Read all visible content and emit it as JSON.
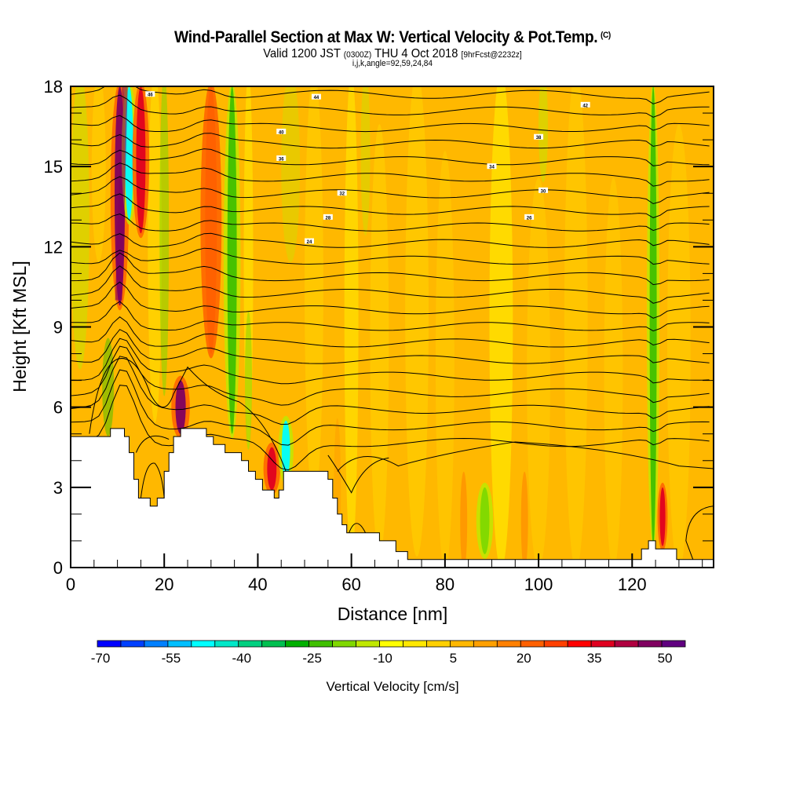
{
  "header": {
    "title": "Wind-Parallel Section at Max W: Vertical Velocity & Pot.Temp.",
    "copyright": "(C)",
    "valid_prefix": "Valid 1200 JST",
    "valid_utc": "(0300Z)",
    "valid_date": "THU 4 Oct 2018",
    "forecast": "[9hrFcst@2232z]",
    "indices": "i,j,k,angle=92,59,24,84"
  },
  "chart_data": {
    "type": "heatmap",
    "title": "Wind-Parallel Section at Max W: Vertical Velocity & Pot.Temp.",
    "xlabel": "Distance [nm]",
    "ylabel": "Height [Kft MSL]",
    "xlim": [
      0,
      137.4
    ],
    "ylim": [
      0,
      18
    ],
    "x_ticks": [
      "0",
      "20",
      "40",
      "60",
      "80",
      "100",
      "120"
    ],
    "x_tick_values": [
      0,
      20,
      40,
      60,
      80,
      100,
      120
    ],
    "x_minor_step": 5,
    "y_ticks": [
      "0",
      "3",
      "6",
      "9",
      "12",
      "15",
      "18"
    ],
    "y_tick_values": [
      0,
      3,
      6,
      9,
      12,
      15,
      18
    ],
    "y_minor_step": 1,
    "colorbar": {
      "label": "Vertical Velocity [cm/s]",
      "tick_labels": [
        "-70",
        "-55",
        "-40",
        "-25",
        "-10",
        "5",
        "20",
        "35",
        "50"
      ],
      "tick_values": [
        -70,
        -55,
        -40,
        -25,
        -10,
        5,
        20,
        35,
        50
      ],
      "min": -70,
      "step": 5,
      "colors": [
        "#0000ff",
        "#0040ff",
        "#0080ff",
        "#00bfff",
        "#00ffff",
        "#00e8c8",
        "#00d080",
        "#00c050",
        "#00b000",
        "#40c000",
        "#80d800",
        "#c0e800",
        "#ffff00",
        "#ffe800",
        "#ffd000",
        "#ffb800",
        "#ffa000",
        "#ff8000",
        "#ff6000",
        "#ff4000",
        "#ff0000",
        "#e00020",
        "#b00040",
        "#800060",
        "#600080"
      ]
    },
    "background_value_cm_s": 5,
    "streaks": [
      {
        "x": 10.5,
        "y0": 9.8,
        "y1": 18,
        "w": 2.2,
        "value": 45,
        "note": "strong updraft, upper-left"
      },
      {
        "x": 12.5,
        "y0": 13,
        "y1": 18,
        "w": 1.8,
        "value": -50,
        "note": "downdraft core"
      },
      {
        "x": 15.0,
        "y0": 12.5,
        "y1": 18,
        "w": 2.0,
        "value": 35
      },
      {
        "x": 23.5,
        "y0": 5.0,
        "y1": 7.0,
        "w": 2.2,
        "value": 45,
        "note": "lee updraft"
      },
      {
        "x": 34.5,
        "y0": 5,
        "y1": 18,
        "w": 2.0,
        "value": -25
      },
      {
        "x": 30.0,
        "y0": 8,
        "y1": 18,
        "w": 2.5,
        "value": 20
      },
      {
        "x": 43.0,
        "y0": 2.9,
        "y1": 4.5,
        "w": 2.0,
        "value": 35
      },
      {
        "x": 46.0,
        "y0": 3.3,
        "y1": 5.5,
        "w": 1.8,
        "value": -50,
        "note": "downslope jet"
      },
      {
        "x": 88.5,
        "y0": 0.5,
        "y1": 3.0,
        "w": 2.0,
        "value": -20
      },
      {
        "x": 124.5,
        "y0": 0.8,
        "y1": 18,
        "w": 1.5,
        "value": -25
      },
      {
        "x": 126.5,
        "y0": 0.8,
        "y1": 3.0,
        "w": 1.2,
        "value": 35
      }
    ],
    "contour_field": "Potential Temperature",
    "contour_labels_visible": [
      "46",
      "44",
      "42",
      "40",
      "38",
      "36",
      "34",
      "32",
      "30",
      "28",
      "26",
      "24"
    ],
    "terrain_kft": [
      [
        0,
        4.9
      ],
      [
        8.5,
        4.9
      ],
      [
        8.5,
        5.2
      ],
      [
        11.5,
        5.2
      ],
      [
        11.5,
        4.9
      ],
      [
        12.5,
        4.9
      ],
      [
        12.5,
        4.3
      ],
      [
        13.5,
        4.3
      ],
      [
        13.5,
        3.3
      ],
      [
        14.5,
        3.3
      ],
      [
        14.5,
        2.6
      ],
      [
        17,
        2.6
      ],
      [
        17,
        2.3
      ],
      [
        18.5,
        2.3
      ],
      [
        18.5,
        2.6
      ],
      [
        20,
        2.6
      ],
      [
        20,
        3.6
      ],
      [
        21,
        3.6
      ],
      [
        21,
        4.3
      ],
      [
        22,
        4.3
      ],
      [
        22,
        4.9
      ],
      [
        23.5,
        4.9
      ],
      [
        23.5,
        5.2
      ],
      [
        29,
        5.2
      ],
      [
        29,
        4.9
      ],
      [
        30.5,
        4.9
      ],
      [
        30.5,
        4.6
      ],
      [
        33,
        4.6
      ],
      [
        33,
        4.3
      ],
      [
        36.5,
        4.3
      ],
      [
        36.5,
        4.0
      ],
      [
        38,
        4.0
      ],
      [
        38,
        3.6
      ],
      [
        39.5,
        3.6
      ],
      [
        39.5,
        3.3
      ],
      [
        41,
        3.3
      ],
      [
        41,
        2.9
      ],
      [
        43.5,
        2.9
      ],
      [
        43.5,
        2.6
      ],
      [
        44.5,
        2.6
      ],
      [
        44.5,
        2.9
      ],
      [
        45.5,
        2.9
      ],
      [
        45.5,
        3.6
      ],
      [
        55,
        3.6
      ],
      [
        55,
        3.3
      ],
      [
        56,
        3.3
      ],
      [
        56,
        2.6
      ],
      [
        57,
        2.6
      ],
      [
        57,
        2.0
      ],
      [
        58,
        2.0
      ],
      [
        58,
        1.6
      ],
      [
        59,
        1.6
      ],
      [
        59,
        1.3
      ],
      [
        66,
        1.3
      ],
      [
        66,
        1.0
      ],
      [
        69.5,
        1.0
      ],
      [
        69.5,
        0.6
      ],
      [
        72,
        0.6
      ],
      [
        72,
        0.3
      ],
      [
        122,
        0.3
      ],
      [
        122,
        0.7
      ],
      [
        123.5,
        0.7
      ],
      [
        123.5,
        1.0
      ],
      [
        125,
        1.0
      ],
      [
        125,
        0.7
      ],
      [
        129.5,
        0.7
      ],
      [
        129.5,
        0.3
      ],
      [
        137.4,
        0.3
      ]
    ]
  }
}
